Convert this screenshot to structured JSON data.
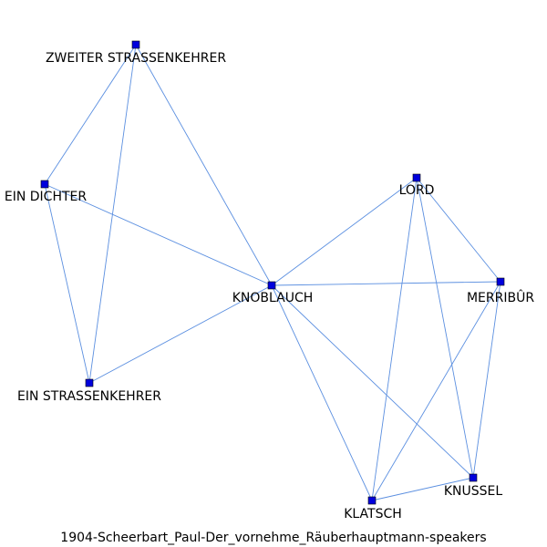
{
  "graph": {
    "caption": "1904-Scheerbart_Paul-Der_vornehme_Räuberhauptmann-speakers",
    "colors": {
      "edge": "#5b8fe0",
      "node_fill": "#0000dd",
      "node_stroke": "#000000"
    },
    "nodes": [
      {
        "id": "zweiter",
        "label": "ZWEITER STRASSENKEHRER"
      },
      {
        "id": "dichter",
        "label": "EIN DICHTER"
      },
      {
        "id": "lord",
        "label": "LORD"
      },
      {
        "id": "knoblauch",
        "label": "KNOBLAUCH"
      },
      {
        "id": "merribur",
        "label": "MERRIBÛR"
      },
      {
        "id": "strassenkehrer",
        "label": "EIN STRASSENKEHRER"
      },
      {
        "id": "knussel",
        "label": "KNUSSEL"
      },
      {
        "id": "klatsch",
        "label": "KLATSCH"
      }
    ],
    "edges": [
      [
        "zweiter",
        "dichter"
      ],
      [
        "zweiter",
        "strassenkehrer"
      ],
      [
        "zweiter",
        "knoblauch"
      ],
      [
        "dichter",
        "knoblauch"
      ],
      [
        "dichter",
        "strassenkehrer"
      ],
      [
        "strassenkehrer",
        "knoblauch"
      ],
      [
        "knoblauch",
        "lord"
      ],
      [
        "knoblauch",
        "merribur"
      ],
      [
        "knoblauch",
        "klatsch"
      ],
      [
        "knoblauch",
        "knussel"
      ],
      [
        "lord",
        "merribur"
      ],
      [
        "lord",
        "klatsch"
      ],
      [
        "lord",
        "knussel"
      ],
      [
        "merribur",
        "klatsch"
      ],
      [
        "merribur",
        "knussel"
      ],
      [
        "knussel",
        "klatsch"
      ]
    ]
  }
}
